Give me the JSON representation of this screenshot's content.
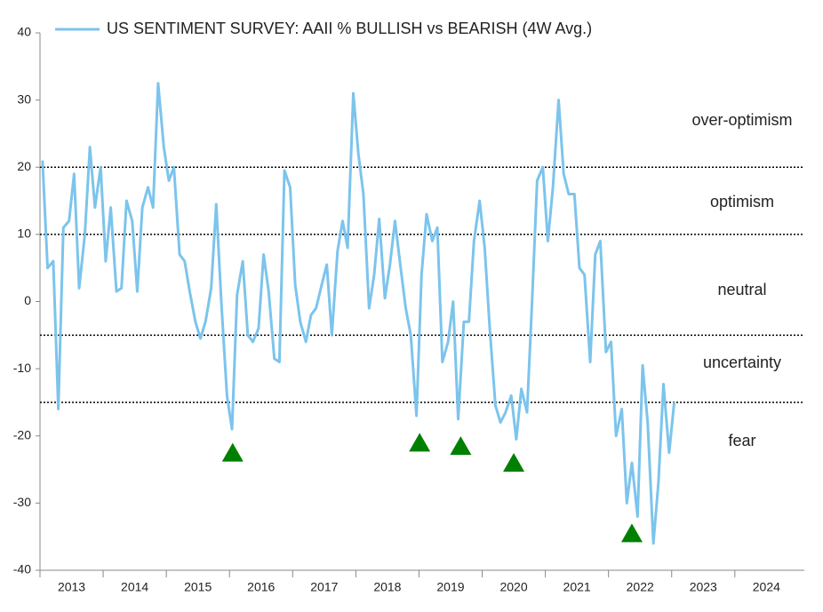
{
  "chart_data": {
    "type": "line",
    "series": [
      {
        "name": "US SENTIMENT SURVEY: AAII % BULLISH vs BEARISH (4W Avg.)",
        "color": "#7cc4ec",
        "x": [
          2013.04,
          2013.12,
          2013.21,
          2013.29,
          2013.37,
          2013.46,
          2013.54,
          2013.62,
          2013.71,
          2013.79,
          2013.87,
          2013.96,
          2014.04,
          2014.12,
          2014.21,
          2014.29,
          2014.37,
          2014.46,
          2014.54,
          2014.62,
          2014.71,
          2014.79,
          2014.87,
          2014.96,
          2015.04,
          2015.12,
          2015.21,
          2015.29,
          2015.37,
          2015.46,
          2015.54,
          2015.62,
          2015.71,
          2015.79,
          2015.87,
          2015.96,
          2016.04,
          2016.12,
          2016.21,
          2016.29,
          2016.37,
          2016.46,
          2016.54,
          2016.62,
          2016.71,
          2016.79,
          2016.87,
          2016.96,
          2017.04,
          2017.12,
          2017.21,
          2017.29,
          2017.37,
          2017.46,
          2017.54,
          2017.62,
          2017.71,
          2017.79,
          2017.87,
          2017.96,
          2018.04,
          2018.12,
          2018.21,
          2018.29,
          2018.37,
          2018.46,
          2018.54,
          2018.62,
          2018.71,
          2018.79,
          2018.87,
          2018.96,
          2019.04,
          2019.12,
          2019.21,
          2019.29,
          2019.37,
          2019.46,
          2019.54,
          2019.62,
          2019.71,
          2019.79,
          2019.87,
          2019.96,
          2020.04,
          2020.12,
          2020.21,
          2020.29,
          2020.37,
          2020.46,
          2020.54,
          2020.62,
          2020.71,
          2020.79,
          2020.87,
          2020.96,
          2021.04,
          2021.12,
          2021.21,
          2021.29,
          2021.37,
          2021.46,
          2021.54,
          2021.62,
          2021.71,
          2021.79,
          2021.87,
          2021.96,
          2022.04,
          2022.12,
          2022.21,
          2022.29,
          2022.37,
          2022.46,
          2022.54,
          2022.62,
          2022.71,
          2022.79,
          2022.87,
          2022.96,
          2023.04
        ],
        "values": [
          21,
          5,
          6,
          -16,
          11,
          12,
          19,
          2,
          10,
          23,
          14,
          20,
          6,
          14,
          1.5,
          2,
          15,
          12,
          1.5,
          14,
          17,
          14,
          32.5,
          23,
          18,
          20,
          7,
          6,
          1.5,
          -3,
          -5.5,
          -3,
          2,
          14.5,
          0,
          -14,
          -19,
          1,
          6,
          -5,
          -6,
          -4,
          7,
          1.5,
          -8.5,
          -9,
          19.5,
          17,
          2.5,
          -3,
          -6,
          -2,
          -1,
          2.5,
          5.5,
          -5,
          7.5,
          12,
          8,
          31,
          22,
          16,
          -1,
          4,
          12.3,
          0.5,
          5.5,
          12,
          5,
          -1,
          -5,
          -17,
          4,
          13,
          9,
          11,
          -9,
          -6,
          0,
          -17.5,
          -3,
          -3,
          9,
          15,
          8,
          -4,
          -15.5,
          -18,
          -16.5,
          -14,
          -20.5,
          -13,
          -16.5,
          0,
          18,
          20,
          9,
          17,
          30,
          19,
          16,
          16,
          5,
          4,
          -9,
          7,
          9,
          -7.5,
          -6,
          -20,
          -16,
          -30,
          -24,
          -32,
          -9.5,
          -18,
          -36,
          -27,
          -12.3,
          -22.5,
          -15
        ]
      }
    ],
    "markers": {
      "color": "#008000",
      "x": [
        2016.05,
        2019.01,
        2019.66,
        2020.5,
        2022.37
      ],
      "values": [
        -22.5,
        -21,
        -21.5,
        -24,
        -34.5
      ]
    },
    "thresholds": [
      20,
      10,
      -5,
      -15
    ],
    "zones": [
      "over-optimism",
      "optimism",
      "neutral",
      "uncertainty",
      "fear"
    ],
    "xlim": [
      2013,
      2025.1
    ],
    "xticks": [
      2013,
      2014,
      2015,
      2016,
      2017,
      2018,
      2019,
      2020,
      2021,
      2022,
      2023,
      2024
    ],
    "ylim": [
      -40,
      40
    ],
    "yticks": [
      -40,
      -30,
      -20,
      -10,
      0,
      10,
      20,
      30,
      40
    ],
    "grid": false
  }
}
